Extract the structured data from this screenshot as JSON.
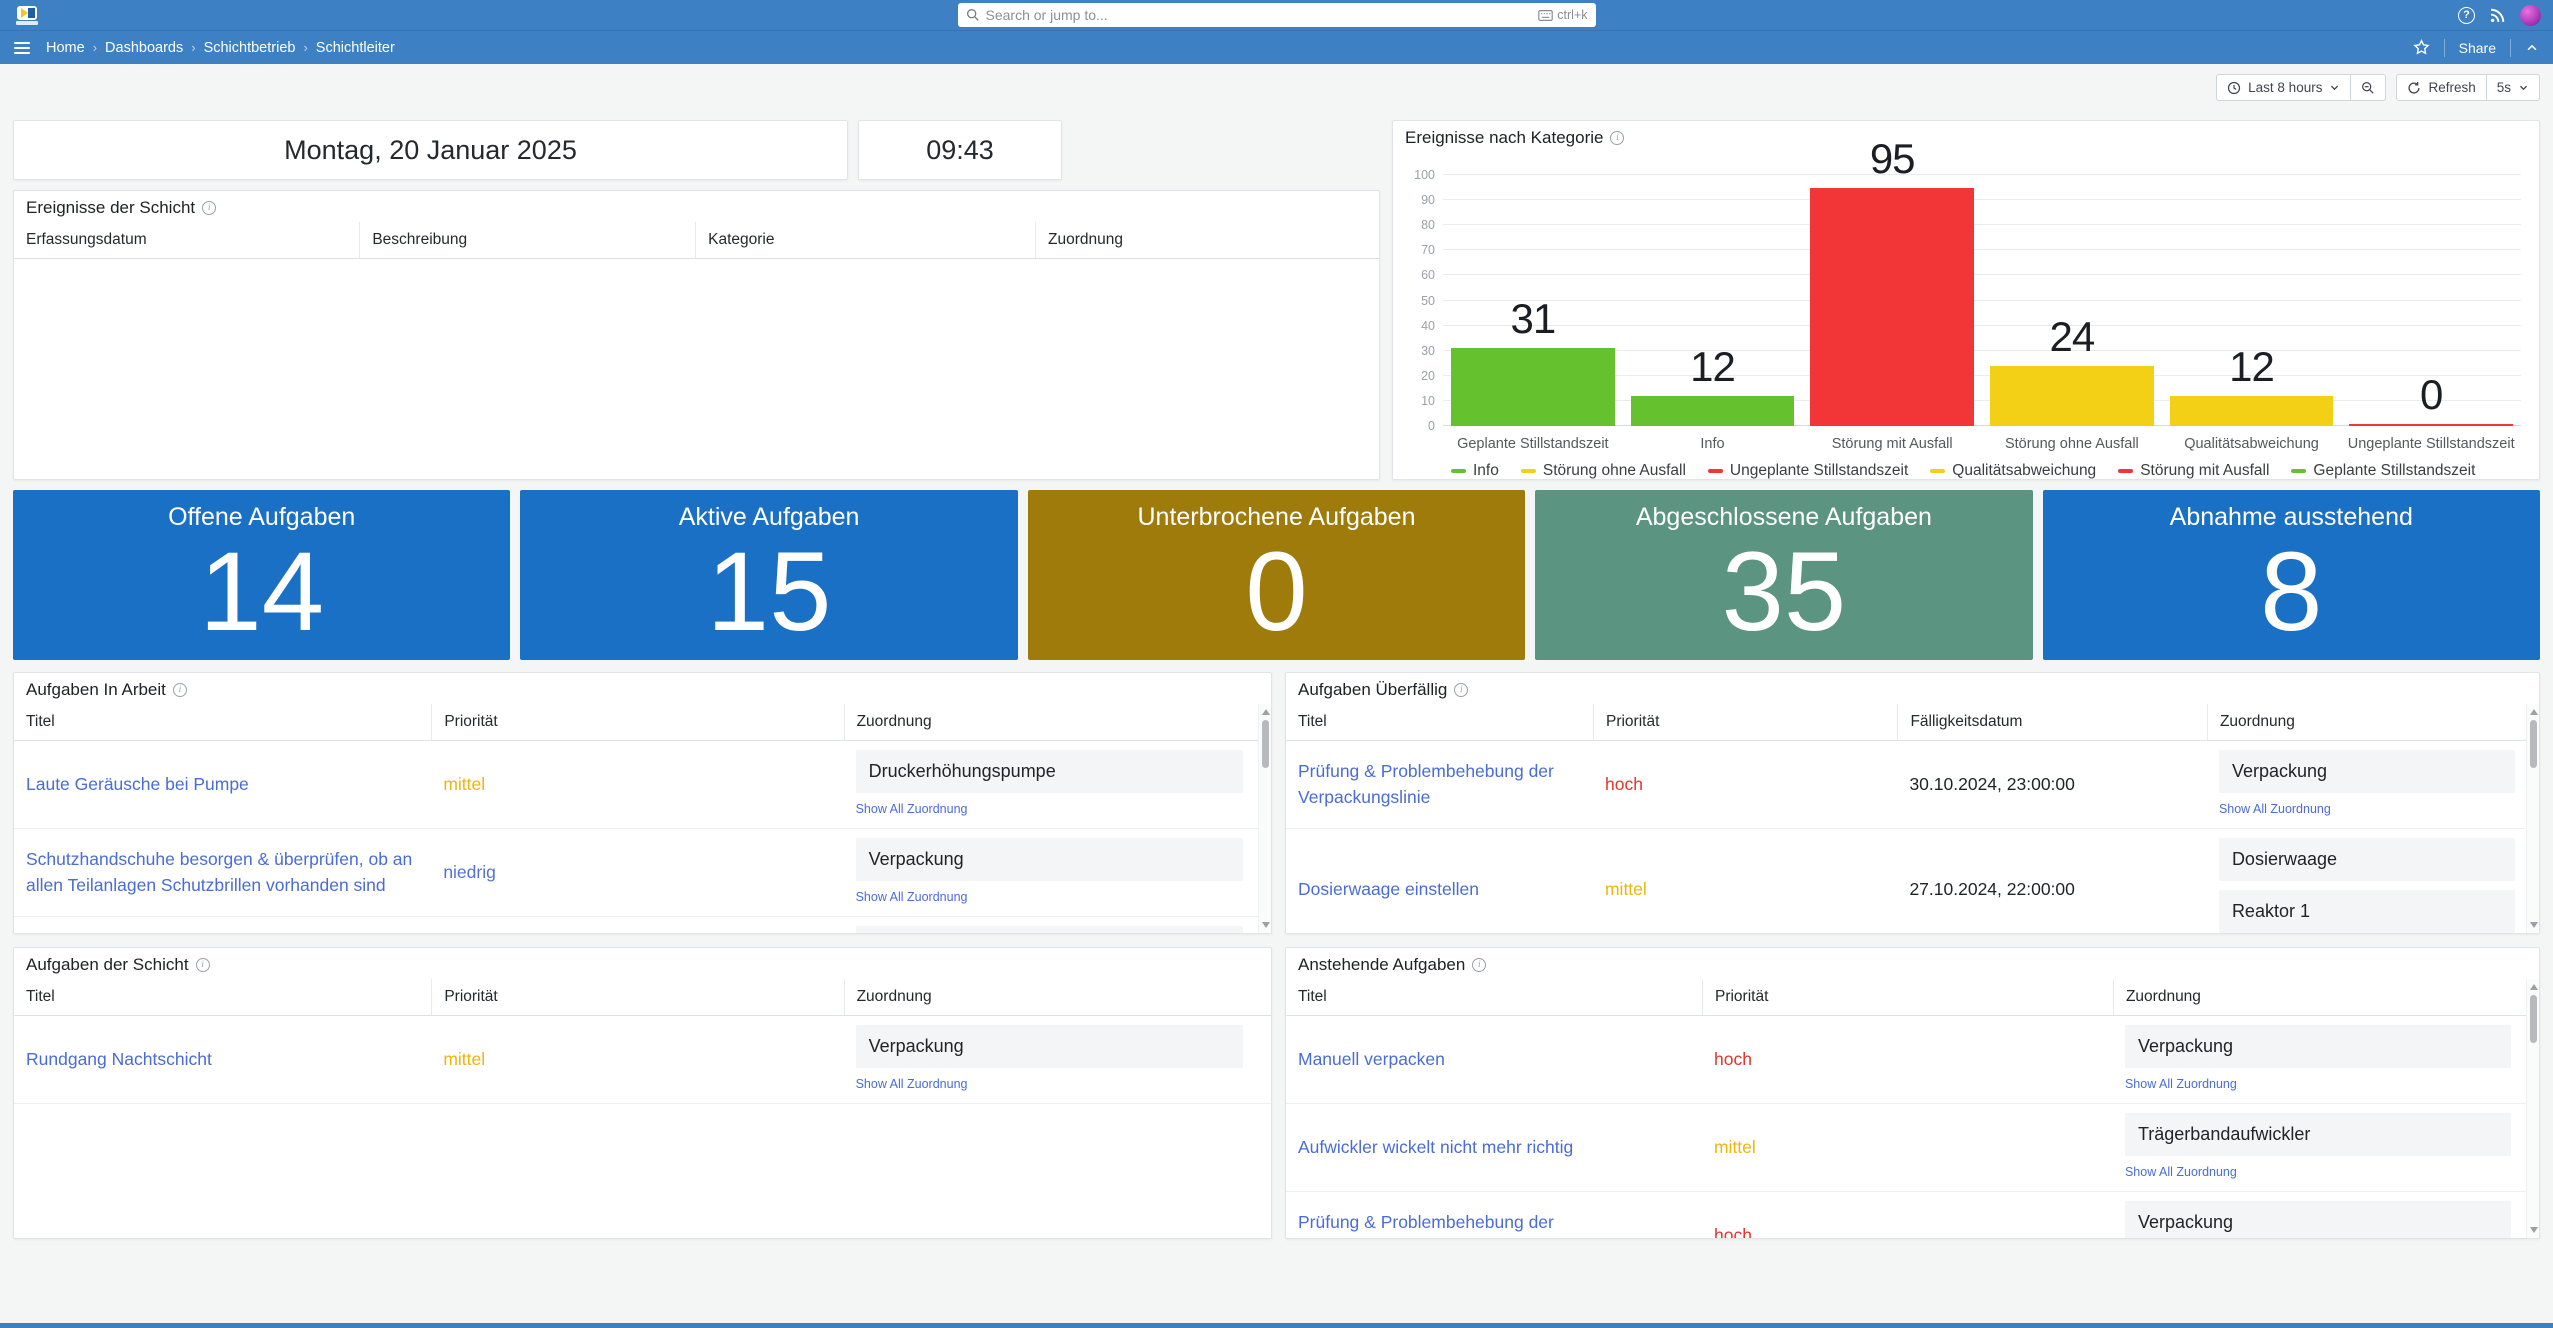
{
  "theme": {
    "topbar_color": "#3d80c4",
    "background": "#f4f5f5",
    "link_color": "#4a6cd6",
    "stat_blue": "#1a70c5",
    "stat_olive": "#9e7b0a",
    "stat_teal": "#5b9480"
  },
  "topnav": {
    "search_placeholder": "Search or jump to...",
    "search_shortcut": "ctrl+k"
  },
  "breadcrumb": {
    "items": [
      "Home",
      "Dashboards",
      "Schichtbetrieb",
      "Schichtleiter"
    ],
    "share_label": "Share"
  },
  "toolbar": {
    "time_range_label": "Last 8 hours",
    "refresh_label": "Refresh",
    "refresh_interval": "5s"
  },
  "clock": {
    "date": "Montag, 20 Januar 2025",
    "time": "09:43"
  },
  "stats": [
    {
      "label": "Offene Aufgaben",
      "value": "14",
      "color": "#1a70c5"
    },
    {
      "label": "Aktive Aufgaben",
      "value": "15",
      "color": "#1a70c5"
    },
    {
      "label": "Unterbrochene Aufgaben",
      "value": "0",
      "color": "#9e7b0a"
    },
    {
      "label": "Abgeschlossene Aufgaben",
      "value": "35",
      "color": "#5b9480"
    },
    {
      "label": "Abnahme ausstehend",
      "value": "8",
      "color": "#1a70c5"
    }
  ],
  "labels": {
    "show_all": "Show All Zuordnung"
  },
  "priority_colors": {
    "hoch": "#e3362c",
    "mittel": "#eeb60c",
    "niedrig": "#5472d4"
  },
  "chart_data": {
    "type": "bar",
    "title": "Ereignisse nach Kategorie",
    "categories": [
      "Geplante Stillstandszeit",
      "Info",
      "Störung mit Ausfall",
      "Störung ohne Ausfall",
      "Qualitätsabweichung",
      "Ungeplante Stillstandszeit"
    ],
    "values": [
      31,
      12,
      95,
      24,
      12,
      0
    ],
    "bar_colors": [
      "#65c22e",
      "#65c22e",
      "#f23536",
      "#f3cf16",
      "#f3cf16",
      "#f23536"
    ],
    "xlabel": "",
    "ylabel": "",
    "ylim": [
      0,
      100
    ],
    "ytick_step": 10,
    "grid": true,
    "legend_position": "bottom",
    "legend": [
      {
        "label": "Info",
        "color": "#65c22e"
      },
      {
        "label": "Störung ohne Ausfall",
        "color": "#f3cf16"
      },
      {
        "label": "Ungeplante Stillstandszeit",
        "color": "#f23536"
      },
      {
        "label": "Qualitätsabweichung",
        "color": "#f3cf16"
      },
      {
        "label": "Störung mit Ausfall",
        "color": "#f23536"
      },
      {
        "label": "Geplante Stillstandszeit",
        "color": "#65c22e"
      }
    ]
  },
  "tables": {
    "events": {
      "title": "Ereignisse der Schicht",
      "col_widths": "25.3% 24.6% 24.9% 25.2%",
      "columns": [
        {
          "label": "Erfassungsdatum",
          "type": "due"
        },
        {
          "label": "Beschreibung",
          "type": "title"
        },
        {
          "label": "Kategorie",
          "type": "due"
        },
        {
          "label": "Zuordnung",
          "type": "zuordnung"
        }
      ],
      "rows": [],
      "scrollbar": false
    },
    "in_arbeit": {
      "title": "Aufgaben In Arbeit",
      "col_widths": "33.2% 32.8% 34%",
      "columns": [
        {
          "label": "Titel",
          "type": "title"
        },
        {
          "label": "Priorität",
          "type": "priority"
        },
        {
          "label": "Zuordnung",
          "type": "zuordnung"
        }
      ],
      "rows": [
        {
          "title": "Laute Geräusche bei Pumpe",
          "priority": "mittel",
          "zuordnung": [
            "Druckerhöhungspumpe"
          ],
          "show_all": true
        },
        {
          "title": "Schutzhandschuhe besorgen & überprüfen, ob an allen Teilanlagen Schutzbrillen vorhanden sind",
          "priority": "niedrig",
          "zuordnung": [
            "Verpackung"
          ],
          "show_all": true
        },
        {
          "partial": true,
          "title": "",
          "priority": "",
          "zuordnung": [
            ""
          ],
          "show_all": false
        }
      ],
      "scrollbar": true
    },
    "ueberfaellig": {
      "title": "Aufgaben Überfällig",
      "col_widths": "24.5% 24.3% 24.7% 26.5%",
      "columns": [
        {
          "label": "Titel",
          "type": "title"
        },
        {
          "label": "Priorität",
          "type": "priority"
        },
        {
          "label": "Fälligkeitsdatum",
          "type": "due"
        },
        {
          "label": "Zuordnung",
          "type": "zuordnung"
        }
      ],
      "rows": [
        {
          "title": "Prüfung & Problembehebung der Verpackungslinie",
          "priority": "hoch",
          "due": "30.10.2024, 23:00:00",
          "zuordnung": [
            "Verpackung"
          ],
          "show_all": true
        },
        {
          "title": "Dosierwaage einstellen",
          "priority": "mittel",
          "due": "27.10.2024, 22:00:00",
          "zuordnung": [
            "Dosierwaage",
            "Reaktor 1"
          ],
          "show_all": false
        }
      ],
      "scrollbar": true
    },
    "schicht": {
      "title": "Aufgaben der Schicht",
      "col_widths": "33.2% 32.8% 34%",
      "columns": [
        {
          "label": "Titel",
          "type": "title"
        },
        {
          "label": "Priorität",
          "type": "priority"
        },
        {
          "label": "Zuordnung",
          "type": "zuordnung"
        }
      ],
      "rows": [
        {
          "title": "Rundgang Nachtschicht",
          "priority": "mittel",
          "zuordnung": [
            "Verpackung"
          ],
          "show_all": true
        }
      ],
      "scrollbar": false
    },
    "anstehende": {
      "title": "Anstehende Aufgaben",
      "col_widths": "33.2% 32.8% 34%",
      "columns": [
        {
          "label": "Titel",
          "type": "title"
        },
        {
          "label": "Priorität",
          "type": "priority"
        },
        {
          "label": "Zuordnung",
          "type": "zuordnung"
        }
      ],
      "rows": [
        {
          "title": "Manuell verpacken",
          "priority": "hoch",
          "zuordnung": [
            "Verpackung"
          ],
          "show_all": true
        },
        {
          "title": "Aufwickler wickelt nicht mehr richtig",
          "priority": "mittel",
          "zuordnung": [
            "Trägerbandaufwickler"
          ],
          "show_all": true
        },
        {
          "title": "Prüfung & Problembehebung der Verpackungslinie",
          "priority": "hoch",
          "zuordnung": [
            "Verpackung"
          ],
          "show_all": false
        }
      ],
      "scrollbar": true
    }
  }
}
